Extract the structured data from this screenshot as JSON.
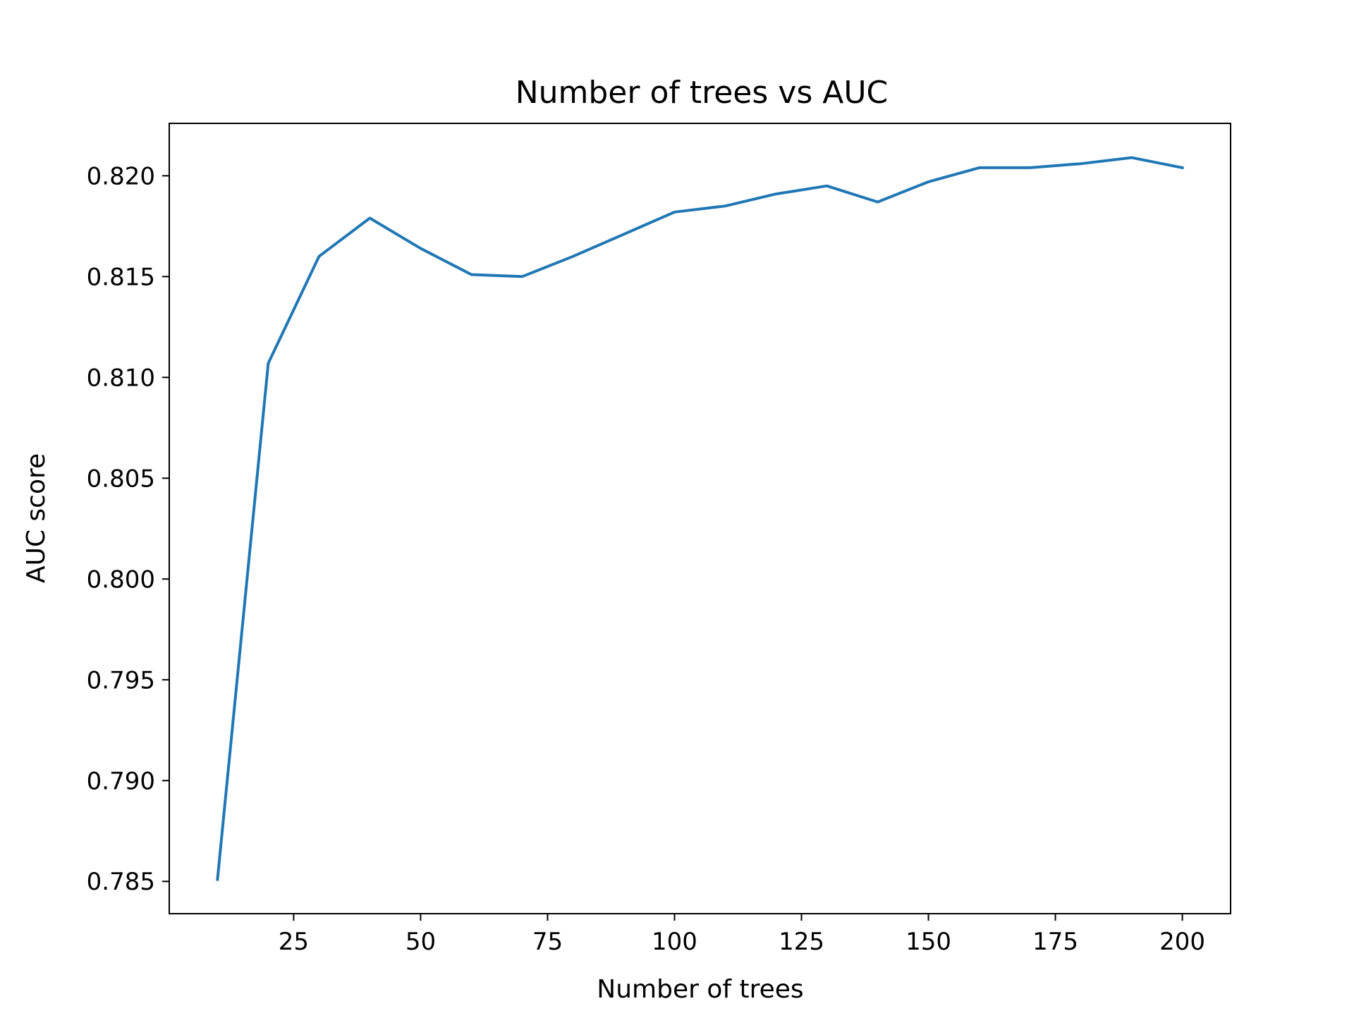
{
  "chart_data": {
    "type": "line",
    "title": "Number of trees vs AUC",
    "xlabel": "Number of trees",
    "ylabel": "AUC score",
    "xlim": [
      0.5,
      209.5
    ],
    "ylim": [
      0.7834,
      0.8226
    ],
    "xticks": [
      25,
      50,
      75,
      100,
      125,
      150,
      175,
      200
    ],
    "xtick_labels": [
      "25",
      "50",
      "75",
      "100",
      "125",
      "150",
      "175",
      "200"
    ],
    "yticks": [
      0.785,
      0.79,
      0.795,
      0.8,
      0.805,
      0.81,
      0.815,
      0.82
    ],
    "ytick_labels": [
      "0.785",
      "0.790",
      "0.795",
      "0.800",
      "0.805",
      "0.810",
      "0.815",
      "0.820"
    ],
    "grid": false,
    "series": [
      {
        "color": "#1f77b4",
        "x": [
          10,
          20,
          30,
          40,
          50,
          60,
          70,
          80,
          90,
          100,
          110,
          120,
          130,
          140,
          150,
          160,
          170,
          180,
          190,
          200
        ],
        "y": [
          0.7851,
          0.8107,
          0.816,
          0.8179,
          0.8164,
          0.8151,
          0.815,
          0.816,
          0.8171,
          0.8182,
          0.8185,
          0.8191,
          0.8195,
          0.8187,
          0.8197,
          0.8204,
          0.8204,
          0.8206,
          0.8209,
          0.8204
        ]
      }
    ]
  }
}
